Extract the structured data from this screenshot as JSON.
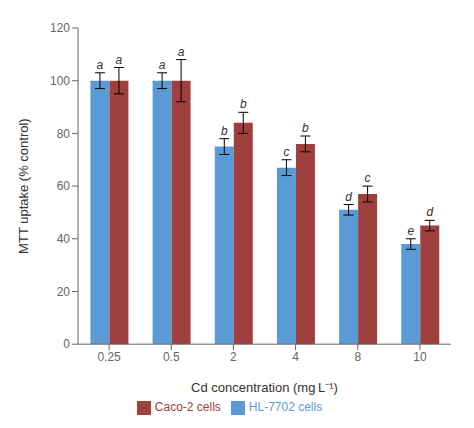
{
  "chart_data": {
    "type": "bar",
    "categories": [
      "0.25",
      "0.5",
      "2",
      "4",
      "8",
      "10"
    ],
    "series": [
      {
        "name": "HL-7702 cells",
        "color": "#5b9bd5",
        "values": [
          100,
          100,
          75,
          67,
          51,
          38
        ],
        "errors": [
          3,
          3,
          3,
          3,
          2,
          2
        ],
        "letters": [
          "a",
          "a",
          "b",
          "c",
          "d",
          "e"
        ]
      },
      {
        "name": "Caco-2 cells",
        "color": "#a0403e",
        "values": [
          100,
          100,
          84,
          76,
          57,
          45
        ],
        "errors": [
          5,
          8,
          4,
          3,
          3,
          2
        ],
        "letters": [
          "a",
          "a",
          "b",
          "b",
          "c",
          "d"
        ]
      }
    ],
    "xlabel": "Cd concentration (mg L⁻¹)",
    "ylabel": "MTT uptake (% control)",
    "ylim": [
      0,
      120
    ],
    "yticks": [
      0,
      20,
      40,
      60,
      80,
      100,
      120
    ],
    "grid": false,
    "legend": "bottom"
  }
}
